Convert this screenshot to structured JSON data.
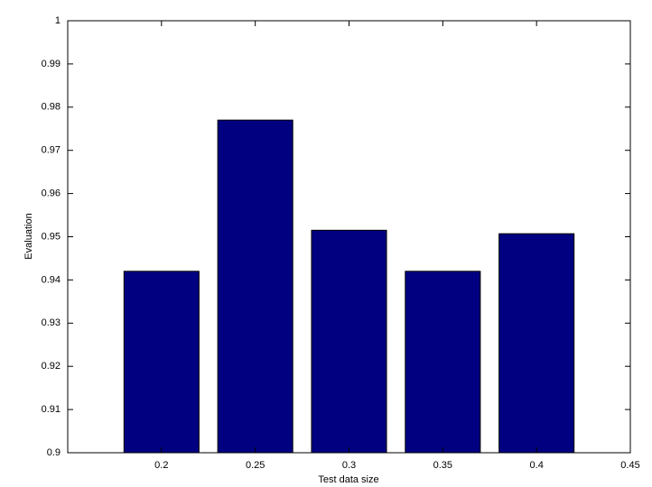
{
  "chart_data": {
    "type": "bar",
    "x": [
      0.2,
      0.25,
      0.3,
      0.35,
      0.4
    ],
    "values": [
      0.942,
      0.977,
      0.9515,
      0.942,
      0.9507
    ],
    "color": "#000080",
    "xlabel": "Test data size",
    "ylabel": "Evaluation",
    "xlim": [
      0.15,
      0.45
    ],
    "xticks": [
      0.2,
      0.25,
      0.3,
      0.35,
      0.4,
      0.45
    ],
    "ylim": [
      0.9,
      1
    ],
    "yticks": [
      0.9,
      0.91,
      0.92,
      0.93,
      0.94,
      0.95,
      0.96,
      0.97,
      0.98,
      0.99,
      1
    ]
  }
}
